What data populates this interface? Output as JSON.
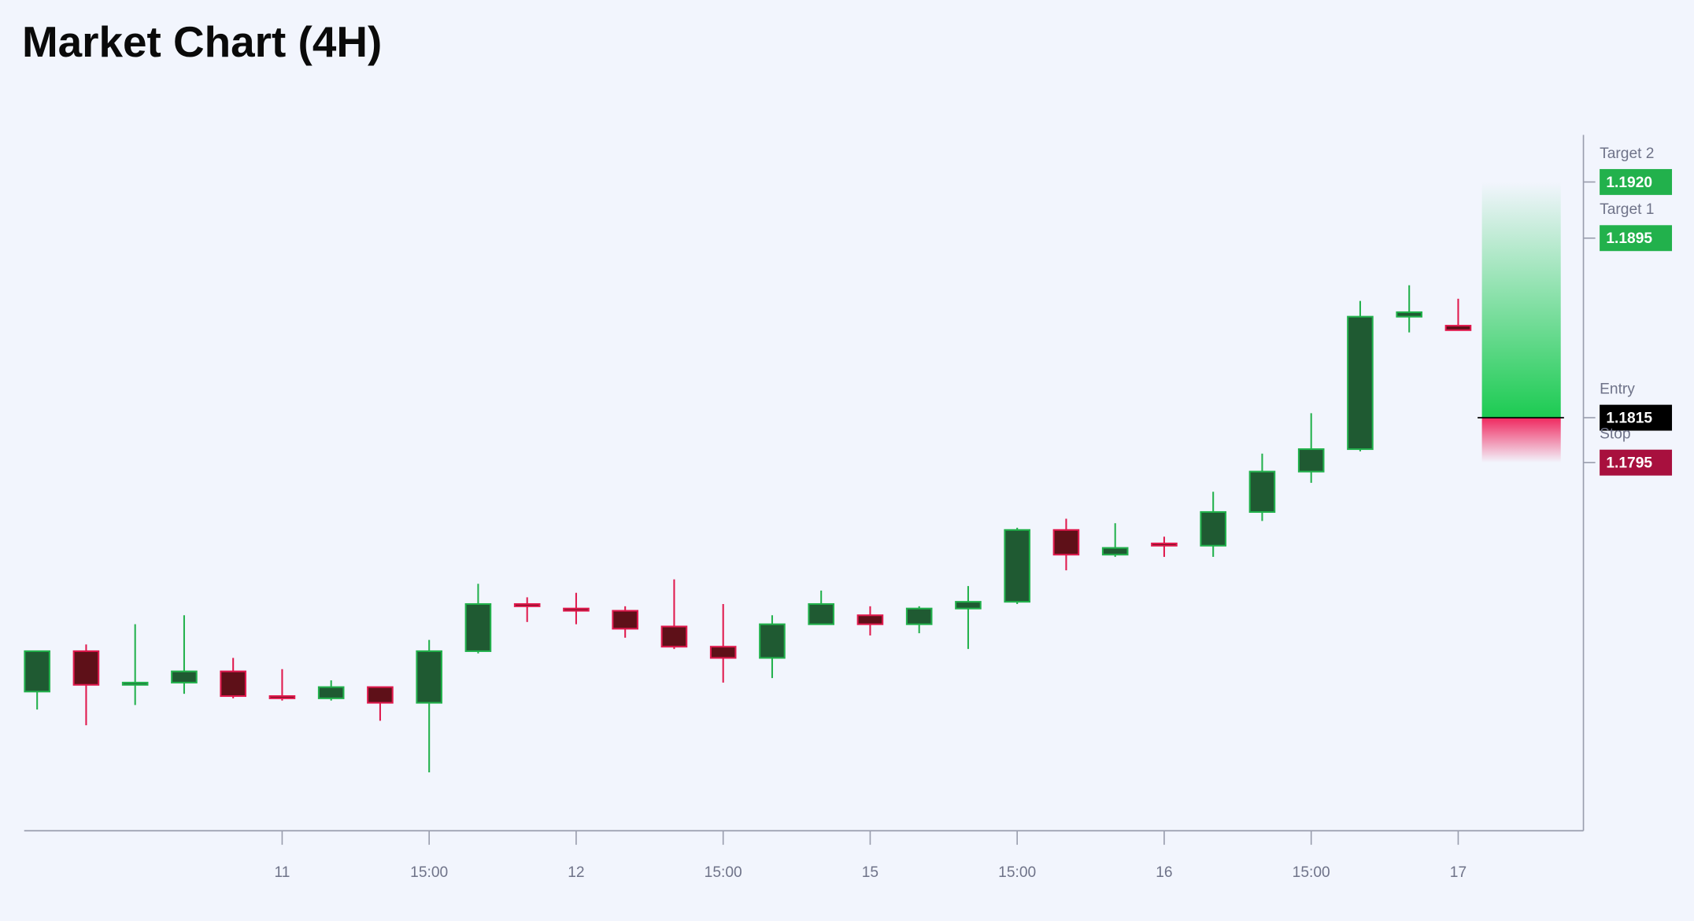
{
  "chart_data": {
    "type": "candlestick",
    "title": "Market Chart (4H)",
    "categories": [
      null,
      null,
      null,
      null,
      null,
      "11",
      null,
      null,
      "15:00",
      null,
      null,
      "12",
      null,
      null,
      "15:00",
      null,
      null,
      "15",
      null,
      null,
      "15:00",
      null,
      null,
      "16",
      null,
      null,
      "15:00",
      null,
      null,
      "17"
    ],
    "open": [
      1.1693,
      1.1711,
      1.1696,
      1.1697,
      1.1702,
      1.1691,
      1.169,
      1.1695,
      1.1688,
      1.1711,
      1.1732,
      1.173,
      1.1729,
      1.1722,
      1.1713,
      1.1708,
      1.1723,
      1.1727,
      1.1723,
      1.173,
      1.1733,
      1.1765,
      1.1754,
      1.1759,
      1.1758,
      1.1773,
      1.1791,
      1.1801,
      1.186,
      1.1856
    ],
    "high": [
      1.1711,
      1.1714,
      1.1723,
      1.1727,
      1.1708,
      1.1703,
      1.1698,
      1.1695,
      1.1716,
      1.1741,
      1.1735,
      1.1737,
      1.1731,
      1.1743,
      1.1732,
      1.1727,
      1.1738,
      1.1731,
      1.1731,
      1.174,
      1.1766,
      1.177,
      1.1768,
      1.1762,
      1.1782,
      1.1799,
      1.1817,
      1.1867,
      1.1874,
      1.1868
    ],
    "low": [
      1.1685,
      1.1678,
      1.1687,
      1.1692,
      1.169,
      1.1689,
      1.1689,
      1.168,
      1.1657,
      1.171,
      1.1724,
      1.1723,
      1.1717,
      1.1712,
      1.1697,
      1.1699,
      1.1723,
      1.1718,
      1.1719,
      1.1712,
      1.1732,
      1.1747,
      1.1753,
      1.1753,
      1.1753,
      1.1769,
      1.1786,
      1.18,
      1.1853,
      1.1854
    ],
    "close": [
      1.1711,
      1.1696,
      1.1697,
      1.1702,
      1.1691,
      1.169,
      1.1695,
      1.1688,
      1.1711,
      1.1732,
      1.1731,
      1.1729,
      1.1721,
      1.1713,
      1.1708,
      1.1723,
      1.1732,
      1.1723,
      1.173,
      1.1733,
      1.1765,
      1.1754,
      1.1757,
      1.1758,
      1.1773,
      1.1791,
      1.1801,
      1.186,
      1.1862,
      1.1854
    ],
    "up_color": "#22b14c",
    "up_fill": "#1f5a32",
    "down_color": "#e0194d",
    "down_fill": "#5e1018",
    "ylim": [
      1.1631,
      1.1941
    ],
    "levels": [
      {
        "name": "Target 2",
        "value": 1.192,
        "label": "1.1920",
        "color": "#22b14c"
      },
      {
        "name": "Target 1",
        "value": 1.1895,
        "label": "1.1895",
        "color": "#22b14c"
      },
      {
        "name": "Entry",
        "value": 1.1815,
        "label": "1.1815",
        "color": "#000000"
      },
      {
        "name": "Stop",
        "value": 1.1795,
        "label": "1.1795",
        "color": "#a8103e"
      }
    ]
  }
}
